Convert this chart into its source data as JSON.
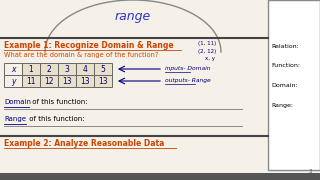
{
  "bg_color": "#f5f0e8",
  "top_section": {
    "bg_color": "#f5f0e8",
    "curve_color": "#888888",
    "range_text": "range",
    "range_color": "#3333cc"
  },
  "example1_title": "Example 1: Recognize Domain & Range",
  "example1_title_color": "#cc4400",
  "question": "What are the domain & range of the function?",
  "question_color": "#cc4400",
  "coords_color": "#000080",
  "table": {
    "x_values": [
      "x",
      "1",
      "2",
      "3",
      "4",
      "5"
    ],
    "y_values": [
      "y",
      "11",
      "12",
      "13",
      "13",
      "13"
    ],
    "border_color": "#666666",
    "cell_bg": "#e8e0c8",
    "text_color": "#000080"
  },
  "inputs_label": "inputs- Domain",
  "outputs_label": "outputs- Range",
  "annotation_color": "#000080",
  "domain_range_color": "#000000",
  "domain_word_color": "#000080",
  "range_word_color": "#000080",
  "right_panel": {
    "bg_color": "#ffffff",
    "border_color": "#888888",
    "labels": [
      "Relation:",
      "Function:",
      "Domain:",
      "Range:"
    ],
    "label_color": "#000000"
  },
  "example2_title": "Example 2: Analyze Reasonable Data",
  "example2_title_color": "#cc4400",
  "divider_color": "#444444",
  "bottom_bar_color": "#555555"
}
